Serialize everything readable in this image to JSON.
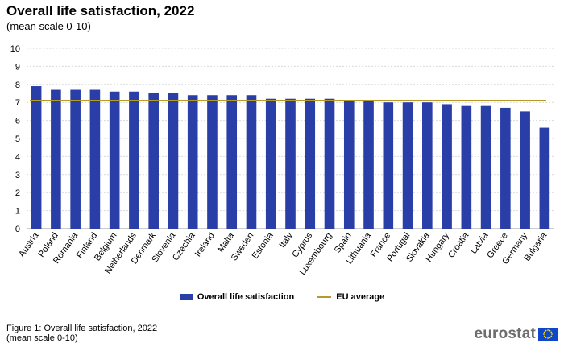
{
  "header": {
    "title": "Overall life satisfaction, 2022",
    "subtitle": "(mean scale 0-10)"
  },
  "chart_data": {
    "type": "bar",
    "categories": [
      "Austria",
      "Poland",
      "Romania",
      "Finland",
      "Belgium",
      "Netherlands",
      "Denmark",
      "Slovenia",
      "Czechia",
      "Ireland",
      "Malta",
      "Sweden",
      "Estonia",
      "Italy",
      "Cyprus",
      "Luxembourg",
      "Spain",
      "Lithuania",
      "France",
      "Portugal",
      "Slovakia",
      "Hungary",
      "Croatia",
      "Latvia",
      "Greece",
      "Germany",
      "Bulgaria"
    ],
    "series": [
      {
        "name": "Overall life satisfaction",
        "values": [
          7.9,
          7.7,
          7.7,
          7.7,
          7.6,
          7.6,
          7.5,
          7.5,
          7.4,
          7.4,
          7.4,
          7.4,
          7.2,
          7.2,
          7.2,
          7.2,
          7.1,
          7.1,
          7.0,
          7.0,
          7.0,
          6.9,
          6.8,
          6.8,
          6.7,
          6.5,
          5.6
        ],
        "color": "#2a3ea8"
      }
    ],
    "reference_line": {
      "name": "EU average",
      "value": 7.1,
      "color": "#b89a2a"
    },
    "ylim": [
      0,
      10
    ],
    "yticks": [
      0,
      1,
      2,
      3,
      4,
      5,
      6,
      7,
      8,
      9,
      10
    ],
    "grid": true,
    "legend_position": "bottom"
  },
  "legend": {
    "bar_label": "Overall life satisfaction",
    "line_label": "EU average"
  },
  "footnote": {
    "line1": "Figure 1: Overall life satisfaction, 2022",
    "line2": "(mean scale 0-10)"
  },
  "logo": {
    "text": "eurostat",
    "icon": "eu-flag-icon"
  }
}
